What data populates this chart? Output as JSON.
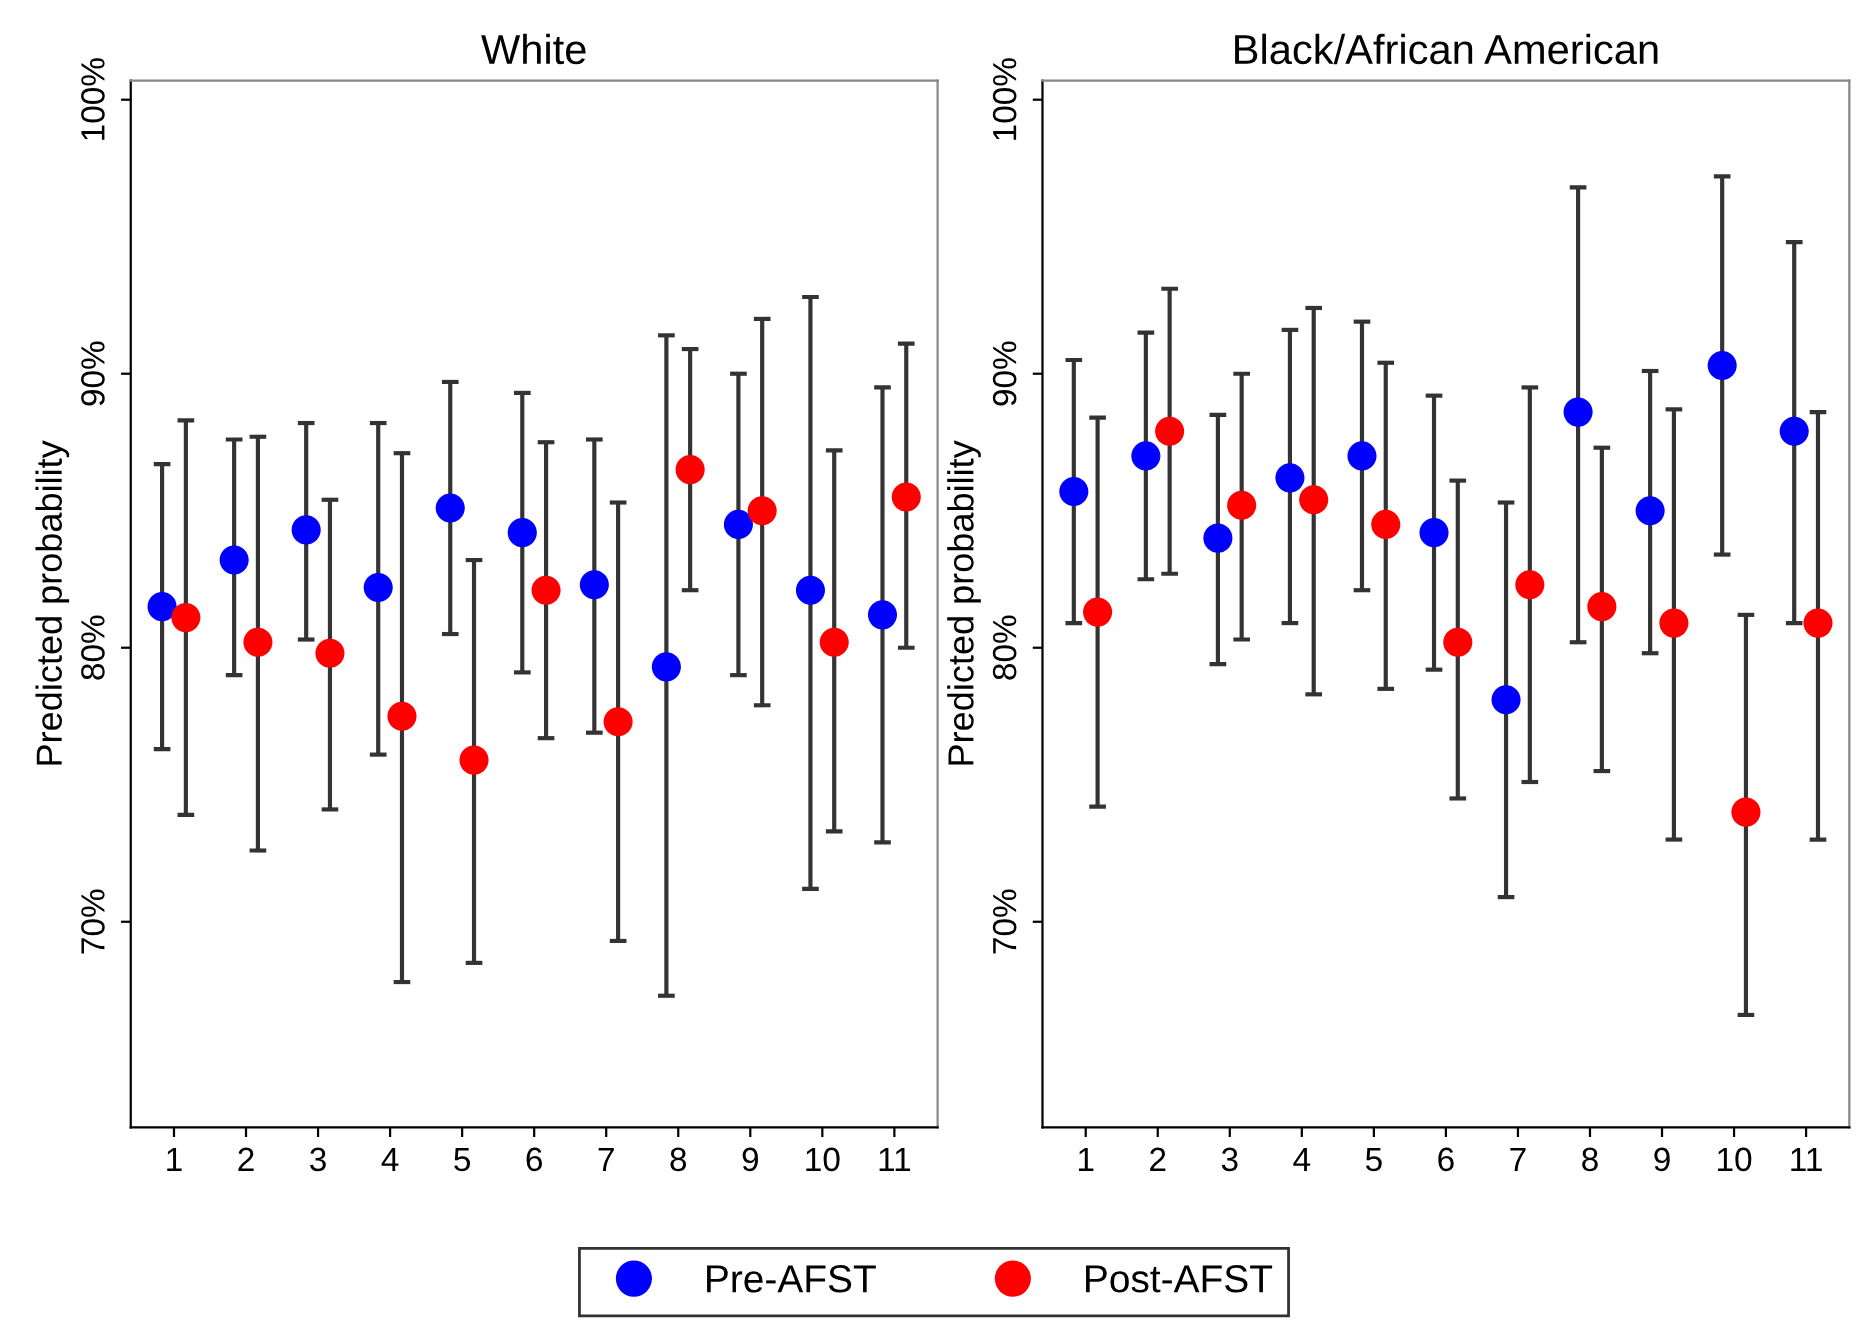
{
  "chart_data": [
    {
      "type": "scatter",
      "title": "White",
      "ylabel": "Predicted probability",
      "categories": [
        "1",
        "2",
        "3",
        "4",
        "5",
        "6",
        "7",
        "8",
        "9",
        "10",
        "11"
      ],
      "ylim": [
        62.5,
        100.7
      ],
      "yticks": [
        {
          "value": 70,
          "label": "70%"
        },
        {
          "value": 80,
          "label": "80%"
        },
        {
          "value": 90,
          "label": "90%"
        },
        {
          "value": 100,
          "label": "100%"
        }
      ],
      "grid": false,
      "legend": "bottom",
      "marker": "circle",
      "series": [
        {
          "name": "Pre-AFST",
          "color": "#0000ff",
          "values": [
            81.5,
            83.2,
            84.3,
            82.2,
            85.1,
            84.2,
            82.3,
            79.3,
            84.5,
            82.1,
            81.2
          ],
          "errors": [
            [
              76.3,
              86.7
            ],
            [
              79.0,
              87.6
            ],
            [
              80.3,
              88.2
            ],
            [
              76.1,
              88.2
            ],
            [
              80.5,
              89.7
            ],
            [
              79.1,
              89.3
            ],
            [
              76.9,
              87.6
            ],
            [
              67.3,
              91.4
            ],
            [
              79.0,
              90.0
            ],
            [
              71.2,
              92.8
            ],
            [
              72.9,
              89.5
            ]
          ]
        },
        {
          "name": "Post-AFST",
          "color": "#ff0000",
          "values": [
            81.1,
            80.2,
            79.8,
            77.5,
            75.9,
            82.1,
            77.3,
            86.5,
            85.0,
            80.2,
            85.5
          ],
          "errors": [
            [
              73.9,
              88.3
            ],
            [
              72.6,
              87.7
            ],
            [
              74.1,
              85.4
            ],
            [
              67.8,
              87.1
            ],
            [
              68.5,
              83.2
            ],
            [
              76.7,
              87.5
            ],
            [
              69.3,
              85.3
            ],
            [
              82.1,
              90.9
            ],
            [
              77.9,
              92.0
            ],
            [
              73.3,
              87.2
            ],
            [
              80.0,
              91.1
            ]
          ]
        }
      ]
    },
    {
      "type": "scatter",
      "title": "Black/African American",
      "ylabel": "Predicted probability",
      "categories": [
        "1",
        "2",
        "3",
        "4",
        "5",
        "6",
        "7",
        "8",
        "9",
        "10",
        "11"
      ],
      "ylim": [
        62.5,
        100.7
      ],
      "yticks": [
        {
          "value": 70,
          "label": "70%"
        },
        {
          "value": 80,
          "label": "80%"
        },
        {
          "value": 90,
          "label": "90%"
        },
        {
          "value": 100,
          "label": "100%"
        }
      ],
      "grid": false,
      "marker": "circle",
      "series": [
        {
          "color": "#0000ff",
          "values": [
            85.7,
            87.0,
            84.0,
            86.2,
            87.0,
            84.2,
            78.1,
            88.6,
            85.0,
            90.3,
            87.9
          ],
          "errors": [
            [
              80.9,
              90.5
            ],
            [
              82.5,
              91.5
            ],
            [
              79.4,
              88.5
            ],
            [
              80.9,
              91.6
            ],
            [
              82.1,
              91.9
            ],
            [
              79.2,
              89.2
            ],
            [
              70.9,
              85.3
            ],
            [
              80.2,
              96.8
            ],
            [
              79.8,
              90.1
            ],
            [
              83.4,
              97.2
            ],
            [
              80.9,
              94.8
            ]
          ]
        },
        {
          "color": "#ff0000",
          "values": [
            81.3,
            87.9,
            85.2,
            85.4,
            84.5,
            80.2,
            82.3,
            81.5,
            80.9,
            74.0,
            80.9
          ],
          "errors": [
            [
              74.2,
              88.4
            ],
            [
              82.7,
              93.1
            ],
            [
              80.3,
              90.0
            ],
            [
              78.3,
              92.4
            ],
            [
              78.5,
              90.4
            ],
            [
              74.5,
              86.1
            ],
            [
              75.1,
              89.5
            ],
            [
              75.5,
              87.3
            ],
            [
              73.0,
              88.7
            ],
            [
              66.6,
              81.2
            ],
            [
              73.0,
              88.6
            ]
          ]
        }
      ]
    }
  ]
}
